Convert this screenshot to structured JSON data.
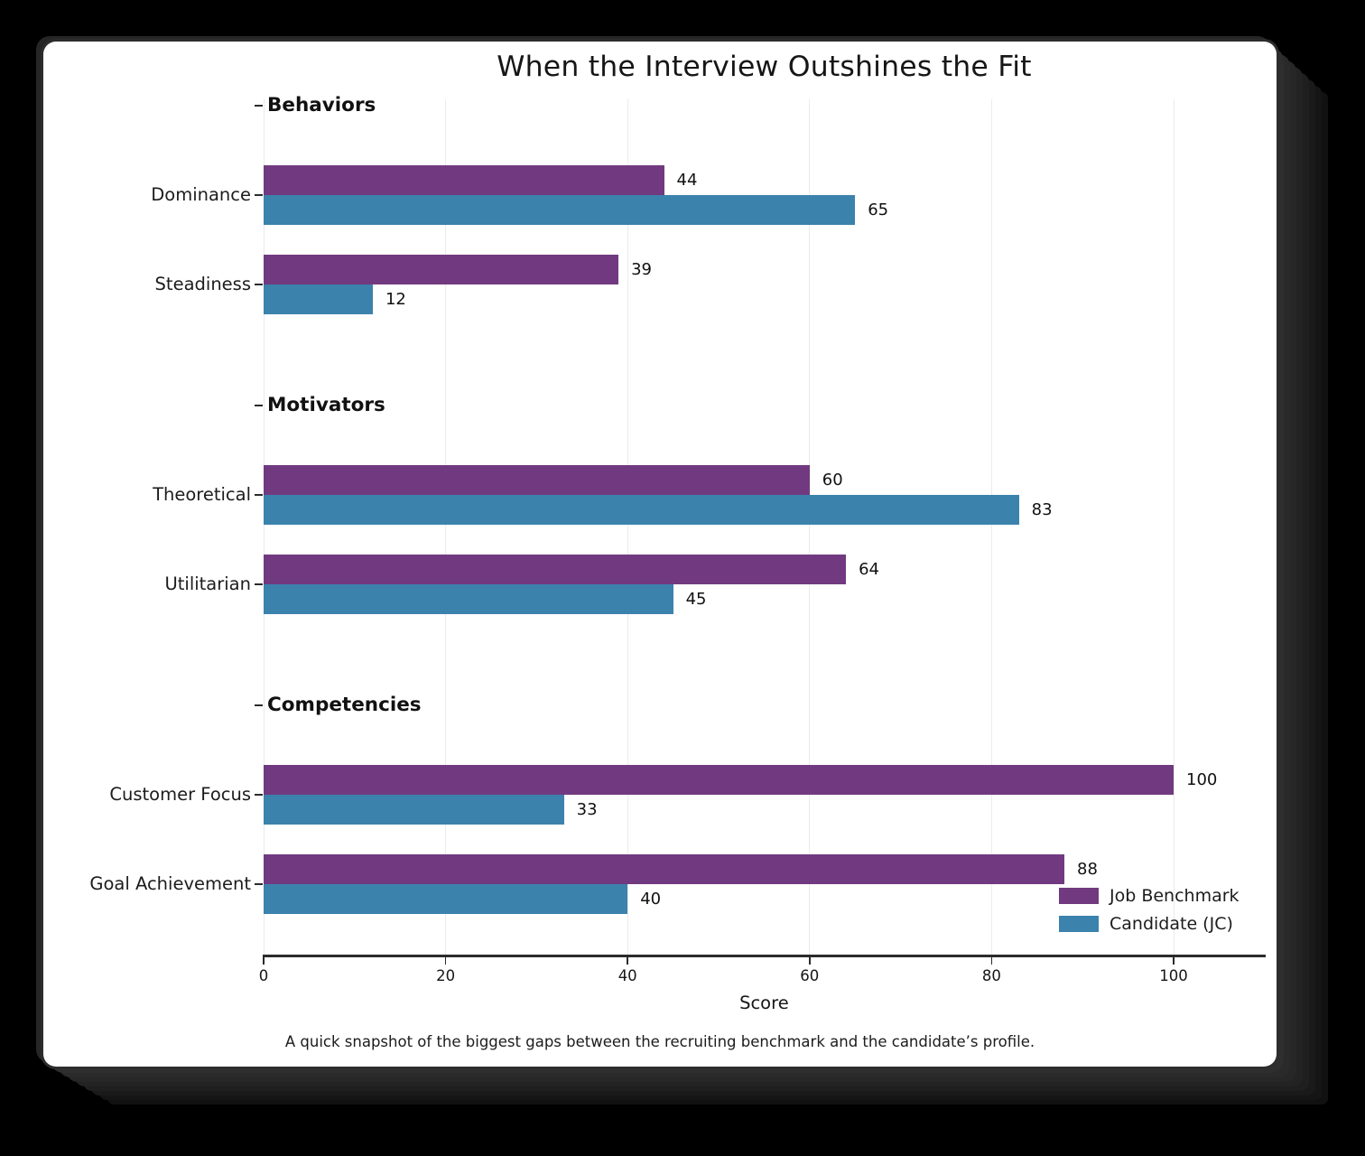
{
  "figure": {
    "background": "#000000",
    "card_background": "#ffffff",
    "frame_color": "#262626"
  },
  "chart_data": {
    "type": "bar",
    "orientation": "horizontal",
    "title": "When the Interview Outshines the Fit",
    "xlabel": "Score",
    "caption": "A quick snapshot of the biggest gaps between the recruiting benchmark and the candidate’s profile.",
    "xlim": [
      0,
      110
    ],
    "xticks": [
      0,
      20,
      40,
      60,
      80,
      100
    ],
    "grid": true,
    "legend_position": "lower right",
    "series": [
      {
        "name": "Job Benchmark",
        "key": "benchmark",
        "color": "#713a80"
      },
      {
        "name": "Candidate (JC)",
        "key": "candidate",
        "color": "#3b82ad"
      }
    ],
    "groups": [
      {
        "section": "Behaviors",
        "rows": [
          {
            "label": "Dominance",
            "benchmark": 44,
            "candidate": 65
          },
          {
            "label": "Steadiness",
            "benchmark": 39,
            "candidate": 12
          }
        ]
      },
      {
        "section": "Motivators",
        "rows": [
          {
            "label": "Theoretical",
            "benchmark": 60,
            "candidate": 83
          },
          {
            "label": "Utilitarian",
            "benchmark": 64,
            "candidate": 45
          }
        ]
      },
      {
        "section": "Competencies",
        "rows": [
          {
            "label": "Customer Focus",
            "benchmark": 100,
            "candidate": 33
          },
          {
            "label": "Goal Achievement",
            "benchmark": 88,
            "candidate": 40
          }
        ]
      }
    ],
    "colors": {
      "grid": "#ebebeb",
      "axis": "#2b2b2b",
      "text": "#1c1c1c"
    }
  }
}
